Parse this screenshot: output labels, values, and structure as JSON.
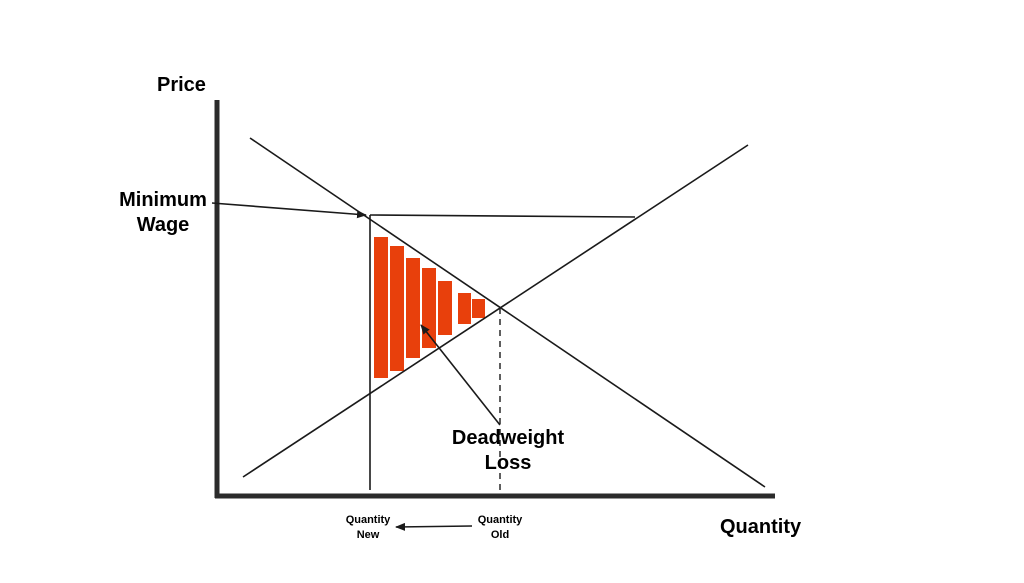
{
  "labels": {
    "y_axis": "Price",
    "x_axis": "Quantity",
    "minimum_wage_line1": "Minimum",
    "minimum_wage_line2": "Wage",
    "deadweight_line1": "Deadweight",
    "deadweight_line2": "Loss",
    "quantity_new_line1": "Quantity",
    "quantity_new_line2": "New",
    "quantity_old_line1": "Quantity",
    "quantity_old_line2": "Old"
  },
  "colors": {
    "deadweight_fill": "#e8400c",
    "line": "#1a1a1a",
    "axis": "#2b2b2b",
    "background": "#ffffff"
  }
}
